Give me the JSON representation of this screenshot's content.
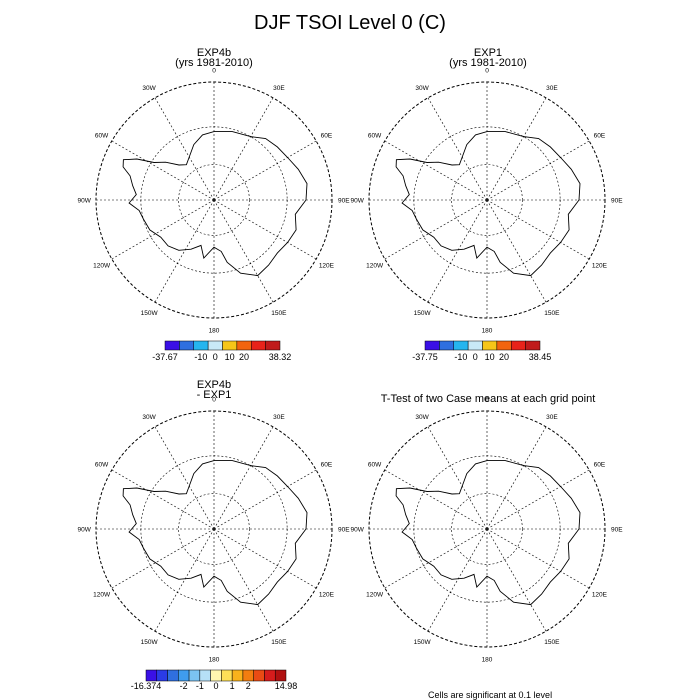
{
  "figure_title": "DJF TSOI Level 0 (C)",
  "panels": [
    {
      "title_line1": "EXP4b",
      "title_line2": "(yrs 1981-2010)",
      "colorbar": {
        "colors": [
          "#3a10e6",
          "#2f6fe0",
          "#26b5ee",
          "#c8e9f7",
          "#f6c618",
          "#f2640e",
          "#e8231a",
          "#c01a1a"
        ],
        "tick_labels": [
          "-37.67",
          "-10",
          "0",
          "10",
          "20",
          "38.32"
        ]
      }
    },
    {
      "title_line1": "EXP1",
      "title_line2": "(yrs 1981-2010)",
      "colorbar": {
        "colors": [
          "#3a10e6",
          "#2f6fe0",
          "#26b5ee",
          "#c8e9f7",
          "#f6c618",
          "#f2640e",
          "#e8231a",
          "#c01a1a"
        ],
        "tick_labels": [
          "-37.75",
          "-10",
          "0",
          "10",
          "20",
          "38.45"
        ]
      }
    },
    {
      "title_line1": "EXP4b",
      "title_line2": "- EXP1",
      "colorbar": {
        "colors": [
          "#3a10e6",
          "#2a3be6",
          "#2f6fe0",
          "#3f9cee",
          "#7bc3f2",
          "#b6e0f7",
          "#fff7b0",
          "#fde057",
          "#f9b21c",
          "#f27d10",
          "#ea4b14",
          "#d61c1c",
          "#b01010"
        ],
        "tick_labels": [
          "-16.374",
          "-2",
          "-1",
          "0",
          "1",
          "2",
          "14.98"
        ]
      }
    },
    {
      "title_line1": "T-Test of two Case means at each grid point",
      "title_line2": "",
      "colorbar": null
    }
  ],
  "footer_note": "Cells are significant at 0.1 level",
  "map_labels": [
    "0",
    "30E",
    "60E",
    "90E",
    "120E",
    "150E",
    "180",
    "150W",
    "120W",
    "90W",
    "60W",
    "30W"
  ],
  "chart_data": {
    "type": "map",
    "projection": "south-polar-stereographic",
    "panels": [
      "EXP4b (yrs 1981-2010)",
      "EXP1 (yrs 1981-2010)",
      "EXP4b - EXP1",
      "T-Test of two Case means at each grid point"
    ],
    "colorbar_ranges": [
      [
        -37.67,
        38.32
      ],
      [
        -37.75,
        38.45
      ],
      [
        -16.374,
        14.98
      ]
    ],
    "longitude_labels": [
      "0",
      "30E",
      "60E",
      "90E",
      "120E",
      "150E",
      "180",
      "150W",
      "120W",
      "90W",
      "60W",
      "30W"
    ]
  }
}
